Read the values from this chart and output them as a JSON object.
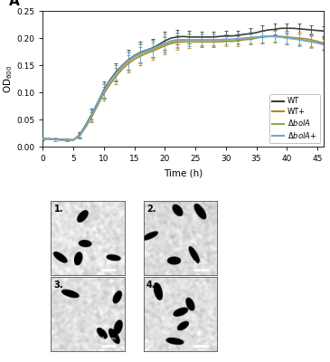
{
  "xlabel": "Time (h)",
  "ylabel": "OD$_{600}$",
  "xlim": [
    0,
    46
  ],
  "ylim": [
    0.0,
    0.25
  ],
  "xticks": [
    0,
    5,
    10,
    15,
    20,
    25,
    30,
    35,
    40,
    45
  ],
  "yticks": [
    0.0,
    0.05,
    0.1,
    0.15,
    0.2,
    0.25
  ],
  "line_colors": [
    "#3d3d3d",
    "#b5862a",
    "#8aab4a",
    "#6fa8d5"
  ],
  "series": {
    "time": [
      0,
      1,
      2,
      3,
      4,
      5,
      6,
      7,
      8,
      9,
      10,
      11,
      12,
      13,
      14,
      15,
      16,
      17,
      18,
      19,
      20,
      21,
      22,
      23,
      24,
      25,
      26,
      27,
      28,
      29,
      30,
      31,
      32,
      33,
      34,
      35,
      36,
      37,
      38,
      39,
      40,
      41,
      42,
      43,
      44,
      45,
      46
    ],
    "WT_mean": [
      0.015,
      0.015,
      0.014,
      0.014,
      0.013,
      0.013,
      0.022,
      0.04,
      0.06,
      0.082,
      0.105,
      0.123,
      0.138,
      0.15,
      0.16,
      0.168,
      0.174,
      0.178,
      0.182,
      0.188,
      0.195,
      0.2,
      0.202,
      0.203,
      0.202,
      0.202,
      0.202,
      0.202,
      0.202,
      0.203,
      0.204,
      0.204,
      0.205,
      0.207,
      0.208,
      0.21,
      0.213,
      0.215,
      0.216,
      0.218,
      0.218,
      0.218,
      0.217,
      0.216,
      0.215,
      0.214,
      0.213
    ],
    "WT_err": [
      0.003,
      0.003,
      0.003,
      0.003,
      0.003,
      0.003,
      0.005,
      0.008,
      0.01,
      0.012,
      0.015,
      0.016,
      0.016,
      0.017,
      0.018,
      0.019,
      0.019,
      0.018,
      0.017,
      0.017,
      0.016,
      0.015,
      0.013,
      0.012,
      0.011,
      0.01,
      0.009,
      0.009,
      0.009,
      0.009,
      0.009,
      0.009,
      0.009,
      0.01,
      0.01,
      0.011,
      0.011,
      0.01,
      0.01,
      0.009,
      0.009,
      0.009,
      0.009,
      0.009,
      0.009,
      0.009,
      0.009
    ],
    "WTp_mean": [
      0.015,
      0.015,
      0.014,
      0.013,
      0.013,
      0.013,
      0.02,
      0.036,
      0.055,
      0.077,
      0.098,
      0.115,
      0.13,
      0.143,
      0.153,
      0.161,
      0.167,
      0.172,
      0.176,
      0.181,
      0.186,
      0.19,
      0.192,
      0.193,
      0.193,
      0.193,
      0.193,
      0.193,
      0.193,
      0.193,
      0.194,
      0.194,
      0.195,
      0.197,
      0.198,
      0.2,
      0.202,
      0.203,
      0.204,
      0.203,
      0.202,
      0.201,
      0.2,
      0.199,
      0.197,
      0.194,
      0.191
    ],
    "WTp_err": [
      0.003,
      0.003,
      0.003,
      0.003,
      0.003,
      0.003,
      0.004,
      0.007,
      0.009,
      0.011,
      0.013,
      0.014,
      0.015,
      0.016,
      0.016,
      0.017,
      0.017,
      0.016,
      0.016,
      0.015,
      0.015,
      0.014,
      0.013,
      0.012,
      0.011,
      0.01,
      0.01,
      0.01,
      0.01,
      0.01,
      0.009,
      0.009,
      0.009,
      0.01,
      0.01,
      0.011,
      0.011,
      0.011,
      0.011,
      0.011,
      0.011,
      0.011,
      0.011,
      0.011,
      0.011,
      0.011,
      0.011
    ],
    "dbolA_mean": [
      0.015,
      0.015,
      0.014,
      0.013,
      0.013,
      0.013,
      0.021,
      0.038,
      0.058,
      0.08,
      0.102,
      0.12,
      0.135,
      0.147,
      0.157,
      0.165,
      0.171,
      0.175,
      0.179,
      0.184,
      0.189,
      0.193,
      0.195,
      0.196,
      0.196,
      0.196,
      0.196,
      0.196,
      0.196,
      0.196,
      0.197,
      0.197,
      0.198,
      0.199,
      0.2,
      0.201,
      0.203,
      0.203,
      0.203,
      0.202,
      0.2,
      0.199,
      0.198,
      0.196,
      0.194,
      0.192,
      0.189
    ],
    "dbolA_err": [
      0.003,
      0.003,
      0.003,
      0.003,
      0.003,
      0.003,
      0.005,
      0.008,
      0.01,
      0.012,
      0.014,
      0.015,
      0.015,
      0.016,
      0.017,
      0.017,
      0.017,
      0.016,
      0.016,
      0.015,
      0.015,
      0.014,
      0.013,
      0.012,
      0.011,
      0.01,
      0.01,
      0.01,
      0.01,
      0.01,
      0.009,
      0.009,
      0.009,
      0.01,
      0.01,
      0.011,
      0.011,
      0.011,
      0.011,
      0.011,
      0.011,
      0.011,
      0.011,
      0.011,
      0.011,
      0.011,
      0.011
    ],
    "dbolAp_mean": [
      0.015,
      0.015,
      0.014,
      0.013,
      0.013,
      0.013,
      0.021,
      0.038,
      0.058,
      0.081,
      0.103,
      0.121,
      0.136,
      0.149,
      0.159,
      0.167,
      0.173,
      0.177,
      0.181,
      0.186,
      0.191,
      0.195,
      0.197,
      0.197,
      0.197,
      0.197,
      0.197,
      0.197,
      0.197,
      0.197,
      0.198,
      0.198,
      0.199,
      0.2,
      0.201,
      0.202,
      0.203,
      0.203,
      0.203,
      0.202,
      0.2,
      0.199,
      0.197,
      0.195,
      0.193,
      0.191,
      0.188
    ],
    "dbolAp_err": [
      0.003,
      0.003,
      0.003,
      0.003,
      0.003,
      0.003,
      0.005,
      0.008,
      0.01,
      0.012,
      0.014,
      0.015,
      0.015,
      0.016,
      0.017,
      0.017,
      0.017,
      0.016,
      0.016,
      0.015,
      0.015,
      0.014,
      0.013,
      0.012,
      0.011,
      0.01,
      0.01,
      0.01,
      0.01,
      0.01,
      0.009,
      0.009,
      0.009,
      0.01,
      0.01,
      0.011,
      0.011,
      0.011,
      0.011,
      0.011,
      0.011,
      0.011,
      0.011,
      0.011,
      0.011,
      0.011,
      0.011
    ]
  },
  "micro_labels": [
    "1.",
    "2.",
    "3.",
    "4."
  ],
  "figure_bg": "#ffffff"
}
